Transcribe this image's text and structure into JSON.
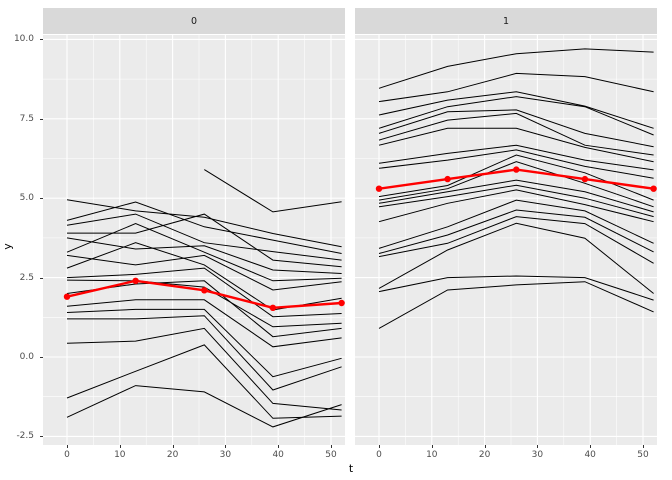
{
  "style": {
    "panel_bg": "#EBEBEB",
    "strip_bg": "#D9D9D9",
    "grid_color": "#FFFFFF",
    "line_color": "#000000",
    "mean_color": "#FF0000",
    "tick_label_color": "#4D4D4D"
  },
  "chart_data": {
    "type": "line",
    "title": "",
    "xlabel": "t",
    "ylabel": "y",
    "legend": "none",
    "grid": true,
    "facet_variable_values": [
      "0",
      "1"
    ],
    "x": [
      0,
      13,
      26,
      39,
      52
    ],
    "x_ticks": [
      0,
      10,
      20,
      30,
      40,
      50
    ],
    "x_tick_labels": [
      "0",
      "10",
      "20",
      "30",
      "40",
      "50"
    ],
    "x_minor_ticks": [
      5,
      15,
      25,
      35,
      45
    ],
    "y_ticks": [
      10.0,
      7.5,
      5.0,
      2.5,
      0.0,
      -2.5
    ],
    "y_tick_labels": [
      "10.0",
      "7.5",
      "5.0",
      "2.5",
      "0.0",
      "-2.5"
    ],
    "y_minor_ticks": [
      8.75,
      6.25,
      3.75,
      1.25,
      -1.25
    ],
    "ylim": [
      -2.65,
      10.15
    ],
    "facets": [
      {
        "label": "0",
        "mean_series": [
          1.9,
          2.4,
          2.1,
          1.55,
          1.7
        ],
        "series": [
          [
            4.95,
            4.6,
            4.4,
            3.89,
            3.47
          ],
          [
            4.3,
            4.88,
            4.1,
            3.68,
            3.26
          ],
          [
            4.15,
            4.5,
            3.6,
            3.32,
            3.05
          ],
          [
            3.9,
            3.9,
            4.5,
            3.05,
            2.84
          ],
          [
            3.75,
            3.4,
            3.5,
            2.74,
            2.63
          ],
          [
            3.3,
            4.2,
            3.3,
            2.4,
            2.48
          ],
          [
            3.2,
            2.9,
            3.2,
            2.11,
            2.37
          ],
          [
            2.8,
            3.6,
            2.9,
            1.48,
            1.85
          ],
          [
            2.5,
            2.6,
            2.8,
            1.27,
            1.37
          ],
          [
            2.42,
            2.4,
            2.2,
            0.95,
            1.06
          ],
          [
            2.0,
            2.3,
            2.4,
            0.64,
            0.9
          ],
          [
            1.6,
            1.8,
            1.8,
            0.32,
            0.6
          ],
          [
            1.4,
            1.5,
            1.5,
            -0.62,
            -0.04
          ],
          [
            1.2,
            1.2,
            1.3,
            -1.04,
            -0.31
          ],
          [
            0.43,
            0.5,
            0.9,
            -1.46,
            -1.67
          ],
          [
            -1.29,
            -0.45,
            0.38,
            -1.93,
            -1.86
          ],
          [
            -1.9,
            -0.9,
            -1.1,
            -2.2,
            -1.5
          ],
          [
            null,
            null,
            5.9,
            4.57,
            4.89
          ]
        ]
      },
      {
        "label": "1",
        "mean_series": [
          5.3,
          5.6,
          5.9,
          5.6,
          5.3
        ],
        "series": [
          [
            8.46,
            9.15,
            9.55,
            9.7,
            9.6
          ],
          [
            8.04,
            8.35,
            8.93,
            8.83,
            8.35
          ],
          [
            7.62,
            8.09,
            8.35,
            7.9,
            7.2
          ],
          [
            7.2,
            7.88,
            8.2,
            7.88,
            6.99
          ],
          [
            7.04,
            7.72,
            7.78,
            7.04,
            6.62
          ],
          [
            6.83,
            7.46,
            7.67,
            6.67,
            6.36
          ],
          [
            6.67,
            7.2,
            7.2,
            6.6,
            6.15
          ],
          [
            6.1,
            6.41,
            6.67,
            6.2,
            5.89
          ],
          [
            5.94,
            6.2,
            6.52,
            6.0,
            5.63
          ],
          [
            5.05,
            5.4,
            6.36,
            5.8,
            4.94
          ],
          [
            4.94,
            5.3,
            6.15,
            5.47,
            4.73
          ],
          [
            4.84,
            5.2,
            5.57,
            5.2,
            4.57
          ],
          [
            4.73,
            5.05,
            5.41,
            5.0,
            4.42
          ],
          [
            4.26,
            4.84,
            5.26,
            4.8,
            4.26
          ],
          [
            3.42,
            4.1,
            4.94,
            4.6,
            3.58
          ],
          [
            3.26,
            3.84,
            4.63,
            4.4,
            3.31
          ],
          [
            3.16,
            3.58,
            4.42,
            4.2,
            2.95
          ],
          [
            2.16,
            3.37,
            4.21,
            3.74,
            2.0
          ],
          [
            2.06,
            2.5,
            2.55,
            2.5,
            1.79
          ],
          [
            0.9,
            2.11,
            2.27,
            2.37,
            1.42
          ]
        ]
      }
    ]
  }
}
